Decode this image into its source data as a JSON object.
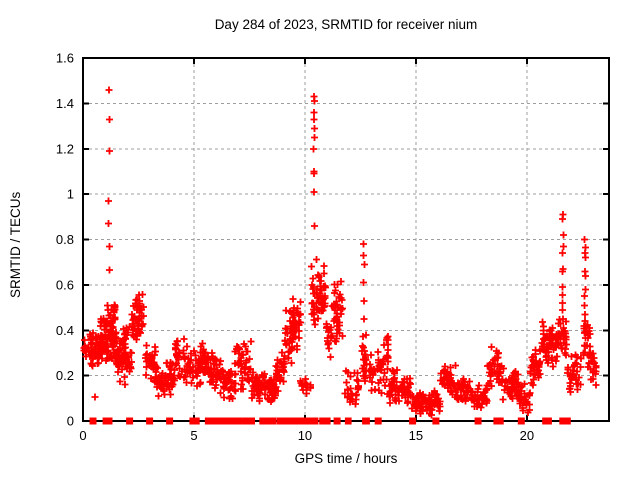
{
  "window": {
    "background": "#ffffff"
  },
  "chart_data": {
    "type": "scatter",
    "title": "Day 284 of 2023, SRMTID for receiver nium",
    "xlabel": "GPS time / hours",
    "ylabel": "SRMTID / TECUs",
    "xlim": [
      0,
      23.7
    ],
    "ylim": [
      0,
      1.6
    ],
    "xticks": [
      0,
      5,
      10,
      15,
      20
    ],
    "xtick_labels": [
      "0",
      "5",
      "10",
      "15",
      "20"
    ],
    "yticks": [
      0,
      0.2,
      0.4,
      0.6,
      0.8,
      1.0,
      1.2,
      1.4,
      1.6
    ],
    "ytick_labels": [
      "0",
      "0.2",
      "0.4",
      "0.6",
      "0.8",
      "1",
      "1.2",
      "1.4",
      "1.6"
    ],
    "grid": true,
    "legend": "none",
    "marker": "plus",
    "marker_size": 7,
    "zero_marker": "square",
    "point_color": "#ff0000",
    "grid_color": "#9e9e9e",
    "border_color": "#000000",
    "clusters": [
      [
        0.02,
        0.18,
        0.27,
        0.37,
        10
      ],
      [
        0.25,
        0.7,
        0.22,
        0.4,
        48
      ],
      [
        0.5,
        0.58,
        0.09,
        0.12,
        1
      ],
      [
        0.7,
        1.1,
        0.24,
        0.47,
        48
      ],
      [
        1.1,
        1.5,
        0.22,
        0.58,
        60
      ],
      [
        1.5,
        1.8,
        0.16,
        0.38,
        30
      ],
      [
        1.8,
        2.2,
        0.15,
        0.45,
        40
      ],
      [
        2.2,
        2.8,
        0.27,
        0.58,
        52
      ],
      [
        2.8,
        3.3,
        0.15,
        0.35,
        36
      ],
      [
        3.3,
        3.75,
        0.1,
        0.25,
        30
      ],
      [
        3.75,
        4.15,
        0.1,
        0.28,
        28
      ],
      [
        4.15,
        4.8,
        0.14,
        0.4,
        40
      ],
      [
        4.8,
        5.3,
        0.14,
        0.32,
        32
      ],
      [
        5.3,
        5.65,
        0.18,
        0.37,
        28
      ],
      [
        5.65,
        6.3,
        0.1,
        0.32,
        40
      ],
      [
        6.3,
        6.85,
        0.07,
        0.25,
        34
      ],
      [
        6.85,
        7.6,
        0.12,
        0.38,
        44
      ],
      [
        7.6,
        8.3,
        0.08,
        0.22,
        46
      ],
      [
        8.3,
        8.7,
        0.07,
        0.2,
        36
      ],
      [
        8.7,
        9.1,
        0.13,
        0.32,
        30
      ],
      [
        9.1,
        9.45,
        0.22,
        0.52,
        30
      ],
      [
        9.45,
        9.8,
        0.3,
        0.58,
        34
      ],
      [
        9.8,
        10.3,
        0.11,
        0.2,
        16
      ],
      [
        10.3,
        10.95,
        0.4,
        0.73,
        55
      ],
      [
        10.95,
        11.2,
        0.28,
        0.45,
        14
      ],
      [
        11.2,
        11.7,
        0.3,
        0.66,
        42
      ],
      [
        11.75,
        12.45,
        0.05,
        0.25,
        28
      ],
      [
        12.55,
        12.8,
        0.1,
        0.42,
        22
      ],
      [
        12.9,
        13.45,
        0.1,
        0.32,
        32
      ],
      [
        13.5,
        13.75,
        0.1,
        0.47,
        22
      ],
      [
        13.75,
        14.35,
        0.05,
        0.25,
        34
      ],
      [
        14.35,
        14.75,
        0.06,
        0.23,
        30
      ],
      [
        14.75,
        15.35,
        0.03,
        0.13,
        40
      ],
      [
        15.35,
        16.1,
        0.02,
        0.15,
        46
      ],
      [
        16.1,
        16.8,
        0.1,
        0.28,
        46
      ],
      [
        16.8,
        17.5,
        0.07,
        0.2,
        40
      ],
      [
        17.5,
        18.2,
        0.04,
        0.16,
        40
      ],
      [
        18.2,
        18.9,
        0.12,
        0.33,
        44
      ],
      [
        18.9,
        19.6,
        0.08,
        0.25,
        40
      ],
      [
        19.6,
        20.15,
        0.03,
        0.18,
        36
      ],
      [
        20.15,
        20.6,
        0.13,
        0.33,
        32
      ],
      [
        20.6,
        21.4,
        0.22,
        0.45,
        60
      ],
      [
        21.4,
        21.8,
        0.28,
        0.47,
        30
      ],
      [
        21.8,
        22.45,
        0.1,
        0.32,
        34
      ],
      [
        22.55,
        22.85,
        0.22,
        0.45,
        26
      ],
      [
        22.85,
        23.15,
        0.15,
        0.33,
        18
      ]
    ],
    "spike_columns": [
      {
        "x": 1.17,
        "values": [
          0.665,
          0.77,
          0.87,
          0.97,
          1.19,
          1.33,
          1.46
        ]
      },
      {
        "x": 10.42,
        "values": [
          0.86,
          1.01,
          1.09,
          1.1,
          1.2,
          1.25,
          1.29,
          1.33,
          1.36,
          1.41,
          1.43
        ]
      },
      {
        "x": 12.65,
        "values": [
          0.45,
          0.53,
          0.61,
          0.69,
          0.73,
          0.78
        ]
      },
      {
        "x": 21.62,
        "values": [
          0.45,
          0.49,
          0.52,
          0.555,
          0.59,
          0.66,
          0.67,
          0.74,
          0.77,
          0.82,
          0.89,
          0.91
        ]
      },
      {
        "x": 22.62,
        "values": [
          0.44,
          0.47,
          0.51,
          0.55,
          0.58,
          0.64,
          0.66,
          0.72,
          0.74,
          0.765,
          0.8
        ]
      }
    ],
    "zero_markers": [
      [
        0.45,
        0
      ],
      [
        1.04,
        0
      ],
      [
        1.17,
        0
      ],
      [
        2.1,
        0
      ],
      [
        3.0,
        0
      ],
      [
        3.9,
        0
      ],
      [
        4.95,
        0
      ],
      [
        5.1,
        0
      ],
      [
        5.65,
        0
      ],
      [
        5.9,
        0
      ],
      [
        6.05,
        0
      ],
      [
        6.35,
        0.35
      ],
      [
        6.7,
        0.45
      ],
      [
        7.05,
        0.3
      ],
      [
        7.35,
        0
      ],
      [
        7.55,
        0.4
      ],
      [
        8.1,
        0
      ],
      [
        8.3,
        0
      ],
      [
        8.55,
        0
      ],
      [
        8.95,
        0.45
      ],
      [
        9.25,
        0
      ],
      [
        9.5,
        0
      ],
      [
        9.65,
        0
      ],
      [
        10.1,
        0.6
      ],
      [
        10.45,
        0
      ],
      [
        10.8,
        0
      ],
      [
        11.0,
        0
      ],
      [
        11.45,
        0
      ],
      [
        11.95,
        0.3
      ],
      [
        12.75,
        0.35
      ],
      [
        13.3,
        0
      ],
      [
        14.85,
        0
      ],
      [
        15.9,
        0
      ],
      [
        17.8,
        0
      ],
      [
        18.65,
        0
      ],
      [
        18.8,
        0
      ],
      [
        19.75,
        0
      ],
      [
        20.85,
        0
      ],
      [
        20.97,
        0
      ],
      [
        21.6,
        0.28
      ],
      [
        21.82,
        0
      ]
    ]
  }
}
